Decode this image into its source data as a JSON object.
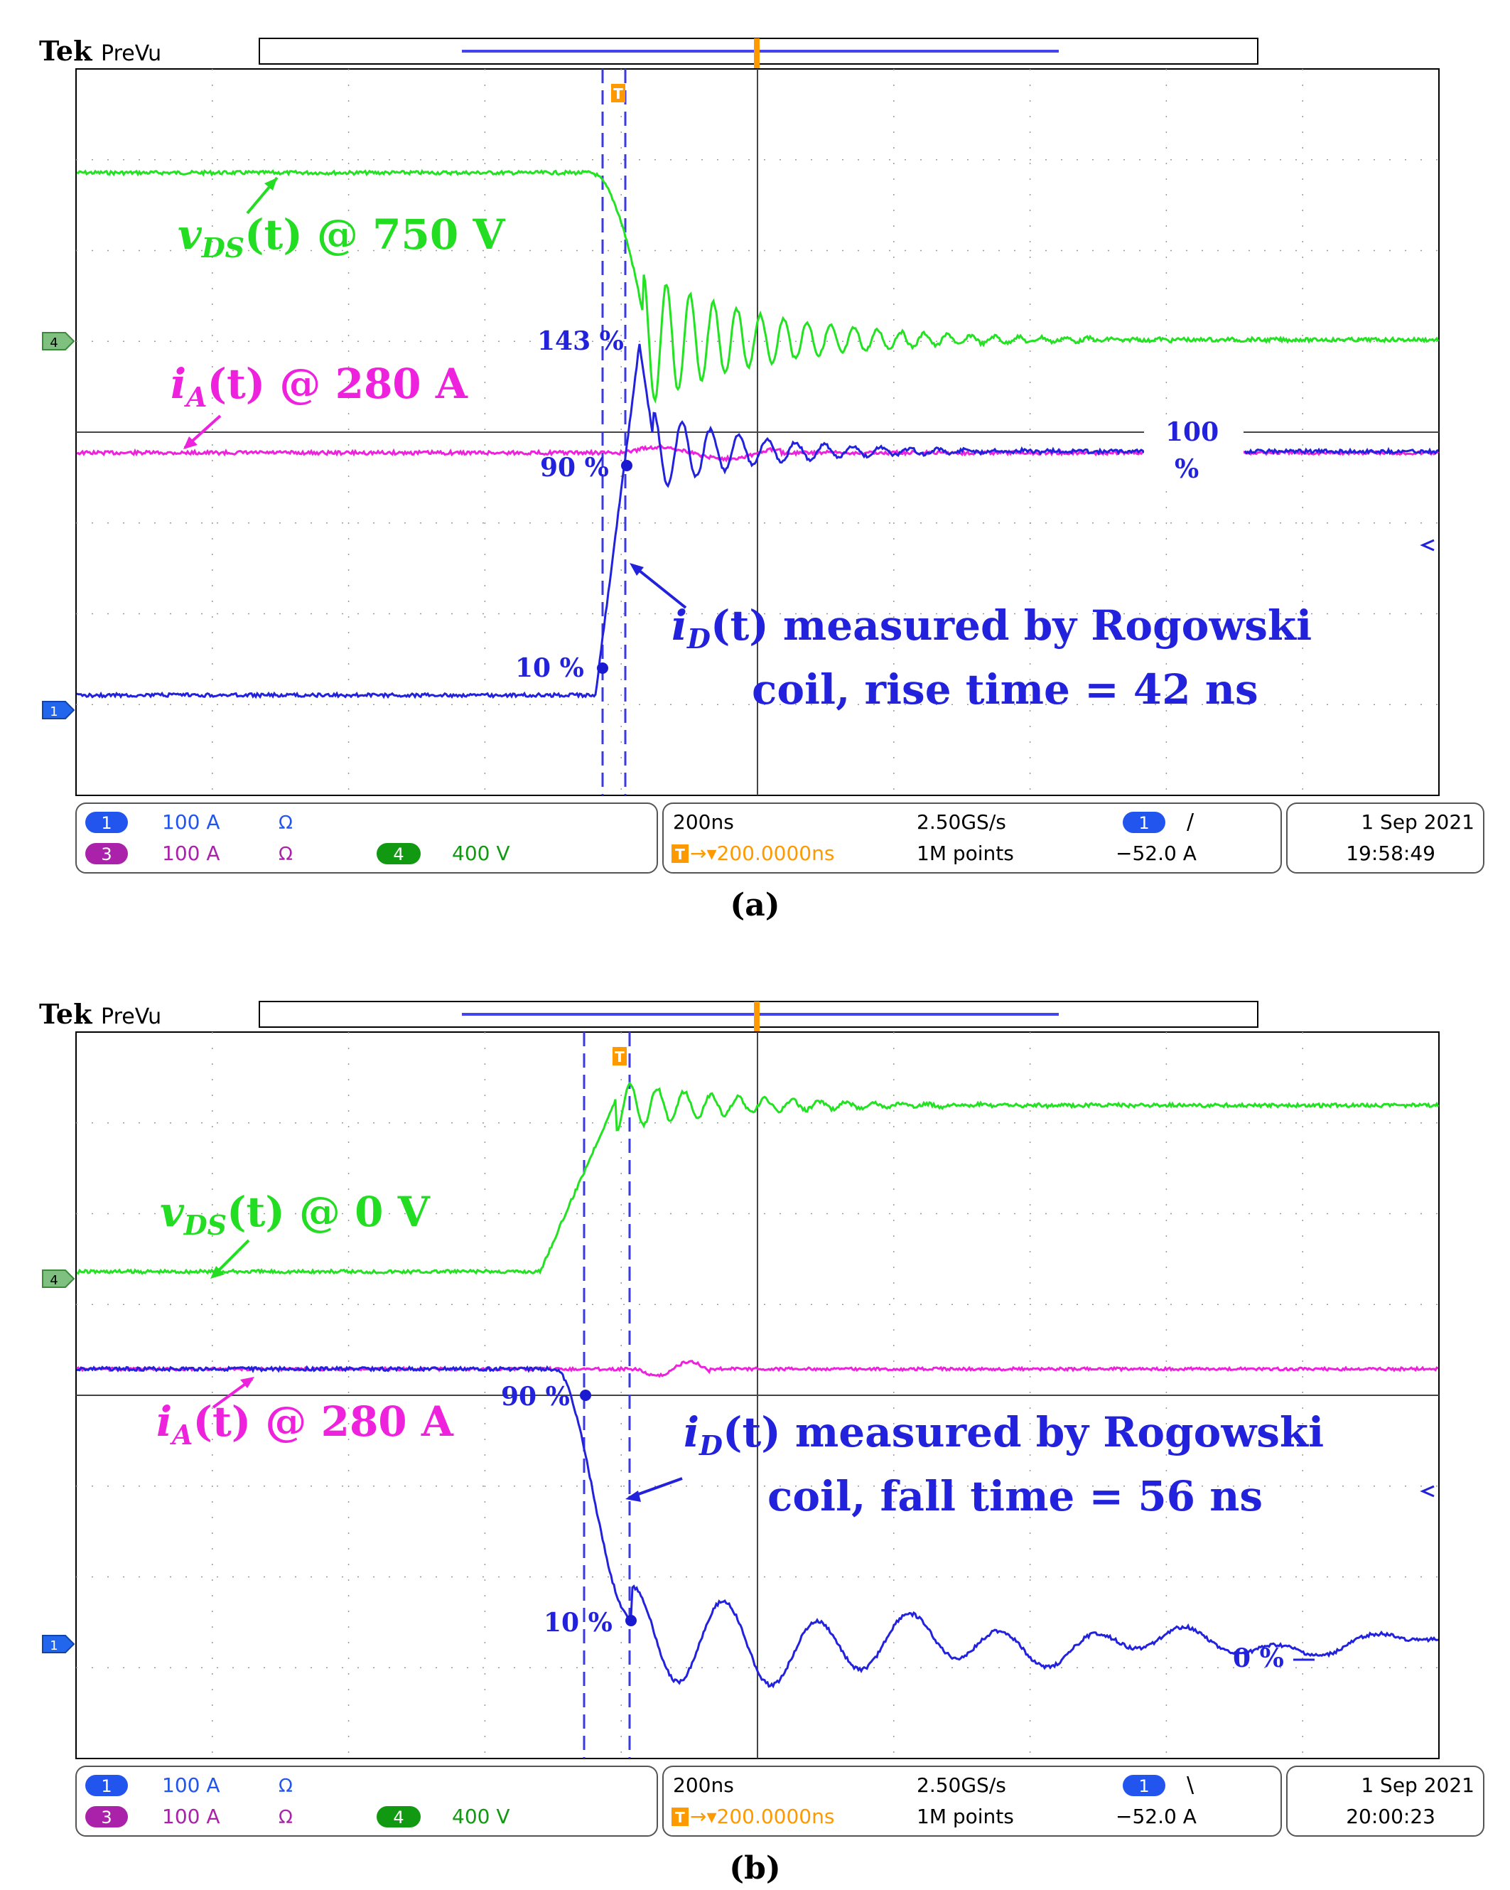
{
  "chart_data": [
    {
      "type": "line",
      "panel_label": "(a)",
      "header": {
        "brand": "Tek",
        "mode": "PreVu"
      },
      "trigger_marker": "T",
      "grid": true,
      "divisions": {
        "x": 10,
        "y": 8
      },
      "x": {
        "unit": "ns",
        "range": [
          -1200,
          800
        ],
        "per_div": 200
      },
      "series": [
        {
          "channel": "4",
          "color": "#22e222",
          "annotation": {
            "symbol": "v",
            "sub": "DS",
            "text": "(t) @ 750 V"
          }
        },
        {
          "channel": "3",
          "color": "#ee22dd",
          "annotation": {
            "symbol": "i",
            "sub": "A",
            "text": "(t) @ 280 A"
          }
        },
        {
          "channel": "1",
          "color": "#2222dd",
          "annotation": {
            "symbol": "i",
            "sub": "D",
            "text": "(t) measured by Rogowski",
            "text2": "coil, rise time = 42 ns"
          }
        }
      ],
      "markers": {
        "m10": "10 %",
        "m90": "90 %",
        "m143": "143 %",
        "m100a": "100",
        "m100b": "%"
      },
      "status": {
        "ch1_badge": "1",
        "ch1_scale": "100 A",
        "ch1_sym": "Ω",
        "ch3_badge": "3",
        "ch3_scale": "100 A",
        "ch3_sym": "Ω",
        "ch4_badge": "4",
        "ch4_scale": "400 V",
        "timebase": "200ns",
        "sample_rate": "2.50GS/s",
        "delay_icon": "T",
        "delay": "→▾200.0000ns",
        "record_length": "1M points",
        "trig_badge": "1",
        "trig_slope": "/",
        "trig_level": "−52.0 A",
        "date": "1 Sep  2021",
        "time": "19:58:49"
      }
    },
    {
      "type": "line",
      "panel_label": "(b)",
      "header": {
        "brand": "Tek",
        "mode": "PreVu"
      },
      "trigger_marker": "T",
      "grid": true,
      "divisions": {
        "x": 10,
        "y": 8
      },
      "x": {
        "unit": "ns",
        "range": [
          -1200,
          800
        ],
        "per_div": 200
      },
      "series": [
        {
          "channel": "4",
          "color": "#22e222",
          "annotation": {
            "symbol": "v",
            "sub": "DS",
            "text": "(t) @ 0 V"
          }
        },
        {
          "channel": "3",
          "color": "#ee22dd",
          "annotation": {
            "symbol": "i",
            "sub": "A",
            "text": "(t) @ 280 A"
          }
        },
        {
          "channel": "1",
          "color": "#2222dd",
          "annotation": {
            "symbol": "i",
            "sub": "D",
            "text": "(t) measured by Rogowski",
            "text2": "coil, fall time = 56 ns"
          }
        }
      ],
      "markers": {
        "m90": "90 %",
        "m10": "10 %",
        "m0": "0 %"
      },
      "status": {
        "ch1_badge": "1",
        "ch1_scale": "100 A",
        "ch1_sym": "Ω",
        "ch3_badge": "3",
        "ch3_scale": "100 A",
        "ch3_sym": "Ω",
        "ch4_badge": "4",
        "ch4_scale": "400 V",
        "timebase": "200ns",
        "sample_rate": "2.50GS/s",
        "delay_icon": "T",
        "delay": "→▾200.0000ns",
        "record_length": "1M points",
        "trig_badge": "1",
        "trig_slope": "\\",
        "trig_level": "−52.0 A",
        "date": "1 Sep  2021",
        "time": "20:00:23"
      }
    }
  ]
}
